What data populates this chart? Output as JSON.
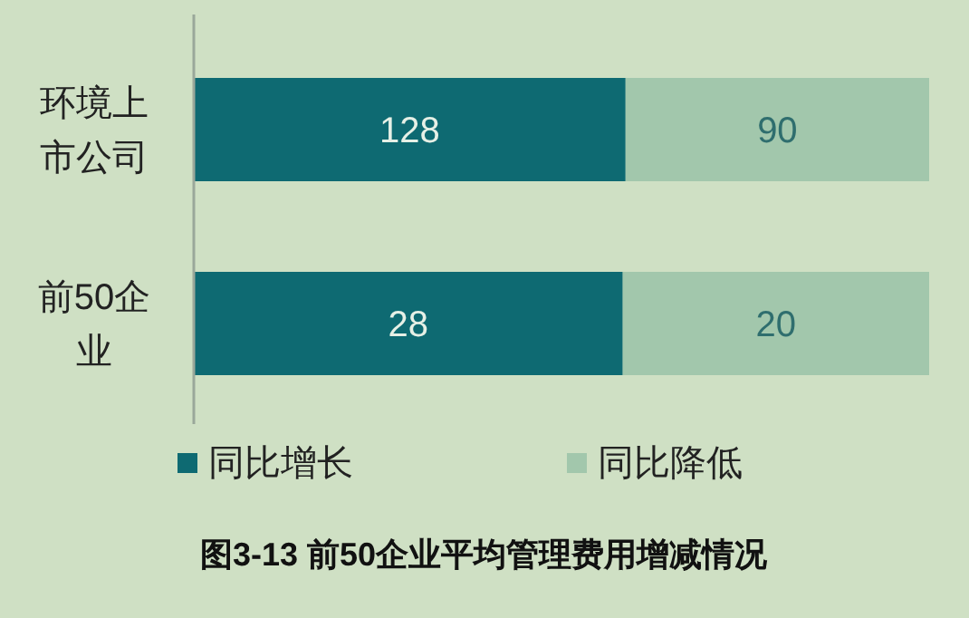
{
  "chart_data": [
    {
      "type": "bar",
      "orientation": "horizontal",
      "stacked": true,
      "categories": [
        "环境上市公司"
      ],
      "xlim": [
        0,
        218
      ],
      "tick_labels": "y",
      "series": [
        {
          "color": "#0e6a72",
          "values": [
            128
          ]
        },
        {
          "color": "#a2c7ac",
          "values": [
            90
          ]
        }
      ],
      "data_labels": true
    },
    {
      "type": "bar",
      "orientation": "horizontal",
      "stacked": true,
      "categories": [
        "前50企业"
      ],
      "xlim": [
        0,
        48
      ],
      "tick_labels": "y",
      "title": "图3-13 前50企业平均管理费用增减情况",
      "series": [
        {
          "name": "同比增长",
          "color": "#0e6a72",
          "values": [
            28
          ]
        },
        {
          "name": "同比降低",
          "color": "#a2c7ac",
          "values": [
            20
          ]
        }
      ],
      "data_labels": true,
      "legend": "bottom"
    }
  ]
}
